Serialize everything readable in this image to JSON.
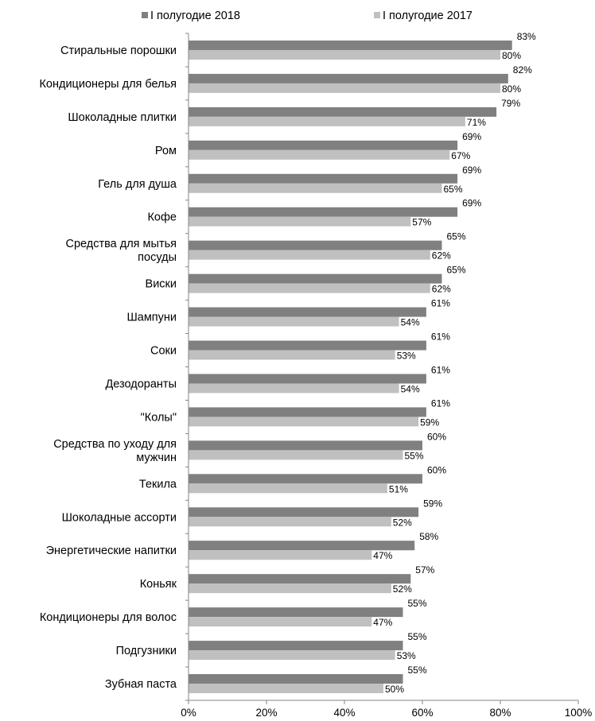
{
  "chart_data": {
    "type": "bar",
    "orientation": "horizontal",
    "legend_position": "top",
    "grid": false,
    "title": "",
    "xlabel": "",
    "ylabel": "",
    "xlim": [
      0,
      100
    ],
    "x_ticks": [
      "0%",
      "20%",
      "40%",
      "60%",
      "80%",
      "100%"
    ],
    "categories": [
      [
        "Стиральные порошки"
      ],
      [
        "Кондиционеры для белья"
      ],
      [
        "Шоколадные плитки"
      ],
      [
        "Ром"
      ],
      [
        "Гель для душа"
      ],
      [
        "Кофе"
      ],
      [
        "Средства для мытья",
        "посуды"
      ],
      [
        "Виски"
      ],
      [
        "Шампуни"
      ],
      [
        "Соки"
      ],
      [
        "Дезодоранты"
      ],
      [
        "\"Колы\""
      ],
      [
        "Средства по уходу для",
        "мужчин"
      ],
      [
        "Текила"
      ],
      [
        "Шоколадные ассорти"
      ],
      [
        "Энергетические напитки"
      ],
      [
        "Коньяк"
      ],
      [
        "Кондиционеры для волос"
      ],
      [
        "Подгузники"
      ],
      [
        "Зубная паста"
      ]
    ],
    "series": [
      {
        "name": "I полугодие 2018",
        "color": "#808080",
        "values": [
          83,
          82,
          79,
          69,
          69,
          69,
          65,
          65,
          61,
          61,
          61,
          61,
          60,
          60,
          59,
          58,
          57,
          55,
          55,
          55
        ],
        "labels": [
          "83%",
          "82%",
          "79%",
          "69%",
          "69%",
          "69%",
          "65%",
          "65%",
          "61%",
          "61%",
          "61%",
          "61%",
          "60%",
          "60%",
          "59%",
          "58%",
          "57%",
          "55%",
          "55%",
          "55%"
        ]
      },
      {
        "name": "I полугодие 2017",
        "color": "#c0c0c0",
        "values": [
          80,
          80,
          71,
          67,
          65,
          57,
          62,
          62,
          54,
          53,
          54,
          59,
          55,
          51,
          52,
          47,
          52,
          47,
          53,
          50
        ],
        "labels": [
          "80%",
          "80%",
          "71%",
          "67%",
          "65%",
          "57%",
          "62%",
          "62%",
          "54%",
          "53%",
          "54%",
          "59%",
          "55%",
          "51%",
          "52%",
          "47%",
          "52%",
          "47%",
          "53%",
          "50%"
        ]
      }
    ]
  }
}
